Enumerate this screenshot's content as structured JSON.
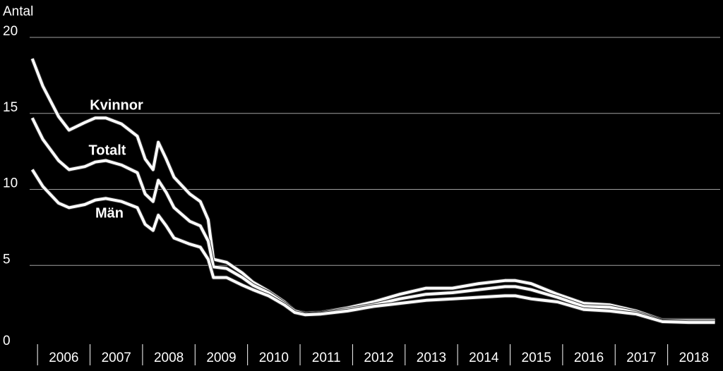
{
  "chart_data": {
    "type": "line",
    "y_label": "Antal",
    "x": [
      2005.9,
      2006.1,
      2006.4,
      2006.6,
      2006.9,
      2007.1,
      2007.3,
      2007.6,
      2007.9,
      2008.05,
      2008.2,
      2008.3,
      2008.45,
      2008.6,
      2008.9,
      2009.1,
      2009.25,
      2009.35,
      2009.6,
      2009.9,
      2010.1,
      2010.4,
      2010.7,
      2010.9,
      2011.1,
      2011.4,
      2011.9,
      2012.4,
      2012.9,
      2013.4,
      2013.9,
      2014.4,
      2014.9,
      2015.1,
      2015.4,
      2015.9,
      2016.4,
      2016.9,
      2017.4,
      2017.9,
      2018.4,
      2018.9
    ],
    "series": [
      {
        "name": "Kvinnor",
        "color": "#ffffff",
        "values": [
          18.6,
          16.8,
          14.8,
          13.9,
          14.4,
          14.7,
          14.7,
          14.3,
          13.5,
          12.0,
          11.3,
          13.1,
          12.0,
          10.8,
          9.7,
          9.2,
          8.0,
          5.4,
          5.2,
          4.5,
          3.9,
          3.3,
          2.6,
          2.0,
          1.85,
          1.9,
          2.2,
          2.6,
          3.1,
          3.5,
          3.5,
          3.8,
          4.0,
          4.0,
          3.8,
          3.1,
          2.5,
          2.4,
          2.0,
          1.4,
          1.4,
          1.4
        ]
      },
      {
        "name": "Totalt",
        "color": "#ffffff",
        "values": [
          14.7,
          13.3,
          11.9,
          11.3,
          11.5,
          11.8,
          11.9,
          11.6,
          11.1,
          9.7,
          9.2,
          10.6,
          9.8,
          8.8,
          7.9,
          7.6,
          6.6,
          4.9,
          4.8,
          4.2,
          3.7,
          3.2,
          2.5,
          2.0,
          1.8,
          1.85,
          2.1,
          2.4,
          2.8,
          3.1,
          3.2,
          3.4,
          3.6,
          3.6,
          3.4,
          2.9,
          2.3,
          2.25,
          1.9,
          1.35,
          1.35,
          1.35
        ]
      },
      {
        "name": "Män",
        "color": "#ffffff",
        "values": [
          11.3,
          10.2,
          9.1,
          8.8,
          9.0,
          9.3,
          9.4,
          9.2,
          8.8,
          7.7,
          7.3,
          8.3,
          7.6,
          6.8,
          6.4,
          6.2,
          5.4,
          4.2,
          4.2,
          3.7,
          3.4,
          3.0,
          2.4,
          1.9,
          1.75,
          1.8,
          2.0,
          2.3,
          2.5,
          2.7,
          2.8,
          2.9,
          3.0,
          3.0,
          2.8,
          2.6,
          2.1,
          2.0,
          1.8,
          1.3,
          1.25,
          1.25
        ]
      }
    ],
    "xlim": [
      2005.85,
      2019.0
    ],
    "xticks": [
      2006,
      2007,
      2008,
      2009,
      2010,
      2011,
      2012,
      2013,
      2014,
      2015,
      2016,
      2017,
      2018
    ],
    "ylim": [
      0,
      20
    ],
    "yticks": [
      0,
      5,
      10,
      15,
      20
    ],
    "grid": true
  }
}
